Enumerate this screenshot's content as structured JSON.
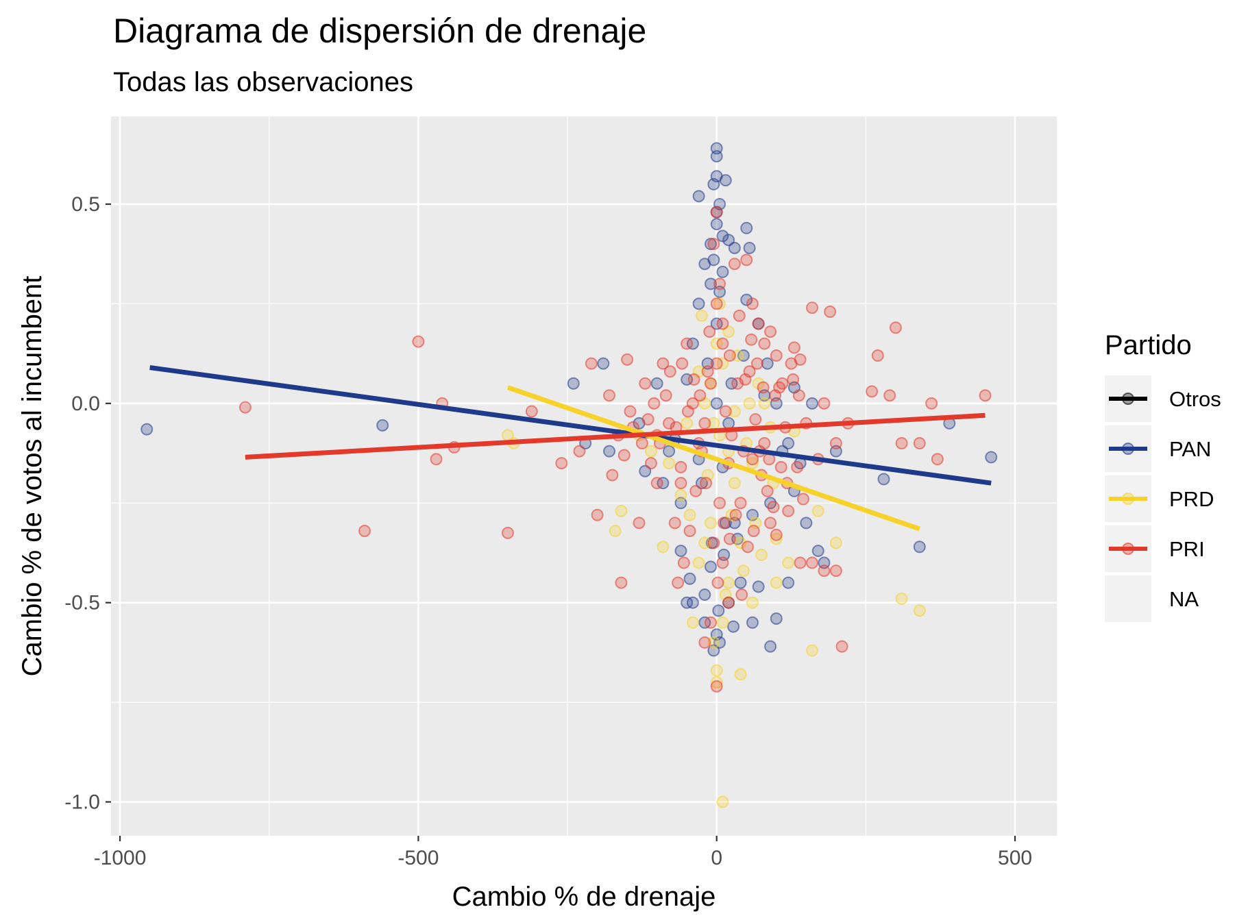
{
  "chart_data": {
    "type": "scatter",
    "title": "Diagrama de dispersión de drenaje",
    "subtitle": "Todas las observaciones",
    "xlabel": "Cambio % de drenaje",
    "ylabel": "Cambio % de votos al incumbent",
    "xlim": [
      -1015,
      570
    ],
    "ylim": [
      -1.085,
      0.72
    ],
    "x_ticks": [
      -1000,
      -500,
      0,
      500
    ],
    "x_tick_labels": [
      "-1000",
      "-500",
      "0",
      "500"
    ],
    "y_ticks": [
      -1.0,
      -0.5,
      0.0,
      0.5
    ],
    "y_tick_labels": [
      "-1.0",
      "-0.5",
      "0.0",
      "0.5"
    ],
    "grid": true,
    "legend": {
      "title": "Partido",
      "position": "right",
      "entries": [
        "Otros",
        "PAN",
        "PRD",
        "PRI",
        "NA"
      ]
    },
    "colors": {
      "Otros": "#000000",
      "PAN": "#1f3a8a",
      "PRD": "#f7d22a",
      "PRI": "#e2392b",
      "NA": "#ebebeb",
      "panel": "#ebebeb",
      "grid": "#ffffff"
    },
    "trend_lines": [
      {
        "name": "PAN",
        "x": [
          -950,
          460
        ],
        "y": [
          0.09,
          -0.2
        ]
      },
      {
        "name": "PRD",
        "x": [
          -350,
          340
        ],
        "y": [
          0.04,
          -0.315
        ]
      },
      {
        "name": "PRI",
        "x": [
          -790,
          450
        ],
        "y": [
          -0.135,
          -0.03
        ]
      }
    ],
    "series": [
      {
        "name": "PAN",
        "points": [
          [
            -955,
            -0.065
          ],
          [
            -560,
            -0.055
          ],
          [
            -240,
            0.05
          ],
          [
            -190,
            0.1
          ],
          [
            -180,
            -0.12
          ],
          [
            -220,
            -0.1
          ],
          [
            -120,
            -0.17
          ],
          [
            -80,
            -0.12
          ],
          [
            -60,
            -0.25
          ],
          [
            -40,
            -0.5
          ],
          [
            -30,
            0.52
          ],
          [
            -20,
            0.35
          ],
          [
            -10,
            0.4
          ],
          [
            0,
            0.64
          ],
          [
            0,
            0.62
          ],
          [
            0,
            0.57
          ],
          [
            -5,
            0.55
          ],
          [
            15,
            0.56
          ],
          [
            5,
            0.5
          ],
          [
            0,
            0.48
          ],
          [
            0,
            0.45
          ],
          [
            10,
            0.42
          ],
          [
            20,
            0.41
          ],
          [
            30,
            0.39
          ],
          [
            50,
            0.44
          ],
          [
            55,
            0.39
          ],
          [
            -30,
            0.25
          ],
          [
            50,
            0.26
          ],
          [
            70,
            0.2
          ],
          [
            -10,
            0.3
          ],
          [
            10,
            0.33
          ],
          [
            -60,
            -0.37
          ],
          [
            -50,
            -0.5
          ],
          [
            -20,
            -0.55
          ],
          [
            0,
            -0.58
          ],
          [
            5,
            -0.6
          ],
          [
            -5,
            -0.62
          ],
          [
            20,
            -0.5
          ],
          [
            60,
            -0.55
          ],
          [
            90,
            -0.61
          ],
          [
            100,
            -0.54
          ],
          [
            120,
            -0.45
          ],
          [
            150,
            -0.3
          ],
          [
            170,
            -0.37
          ],
          [
            180,
            -0.4
          ],
          [
            200,
            -0.12
          ],
          [
            280,
            -0.19
          ],
          [
            340,
            -0.36
          ],
          [
            390,
            -0.05
          ],
          [
            460,
            -0.135
          ],
          [
            130,
            0.04
          ],
          [
            80,
            0.02
          ],
          [
            -100,
            0.05
          ],
          [
            -50,
            0.06
          ],
          [
            30,
            -0.3
          ],
          [
            70,
            -0.46
          ],
          [
            40,
            -0.45
          ],
          [
            -10,
            -0.41
          ],
          [
            15,
            -0.3
          ],
          [
            -25,
            -0.2
          ],
          [
            100,
            0.0
          ],
          [
            120,
            -0.1
          ],
          [
            130,
            -0.22
          ],
          [
            160,
            0.0
          ],
          [
            140,
            -0.15
          ],
          [
            -70,
            -0.09
          ],
          [
            -30,
            -0.14
          ],
          [
            10,
            -0.16
          ],
          [
            60,
            -0.28
          ],
          [
            -15,
            0.1
          ],
          [
            25,
            0.05
          ],
          [
            45,
            0.12
          ],
          [
            -40,
            0.15
          ],
          [
            85,
            0.1
          ],
          [
            0,
            0.2
          ],
          [
            5,
            0.28
          ],
          [
            -5,
            0.36
          ],
          [
            0,
            0.0
          ],
          [
            20,
            -0.05
          ],
          [
            -8,
            -0.35
          ],
          [
            12,
            -0.38
          ],
          [
            35,
            -0.34
          ],
          [
            -45,
            -0.44
          ],
          [
            -20,
            -0.48
          ],
          [
            3,
            -0.52
          ],
          [
            28,
            -0.56
          ],
          [
            90,
            -0.25
          ],
          [
            110,
            -0.12
          ],
          [
            -130,
            -0.05
          ],
          [
            -90,
            -0.2
          ]
        ]
      },
      {
        "name": "PRD",
        "points": [
          [
            -350,
            -0.08
          ],
          [
            -340,
            -0.1
          ],
          [
            -160,
            -0.27
          ],
          [
            -170,
            -0.32
          ],
          [
            -90,
            -0.36
          ],
          [
            -30,
            -0.4
          ],
          [
            -40,
            -0.55
          ],
          [
            0,
            -0.67
          ],
          [
            0,
            -0.7
          ],
          [
            40,
            -0.68
          ],
          [
            10,
            -1.0
          ],
          [
            100,
            -0.45
          ],
          [
            120,
            -0.4
          ],
          [
            160,
            -0.62
          ],
          [
            200,
            -0.35
          ],
          [
            310,
            -0.49
          ],
          [
            340,
            -0.52
          ],
          [
            170,
            -0.27
          ],
          [
            100,
            -0.34
          ],
          [
            60,
            -0.5
          ],
          [
            20,
            -0.45
          ],
          [
            -10,
            -0.3
          ],
          [
            30,
            -0.2
          ],
          [
            50,
            -0.1
          ],
          [
            80,
            0.0
          ],
          [
            -20,
            0.0
          ],
          [
            0,
            0.15
          ],
          [
            20,
            0.18
          ],
          [
            -50,
            -0.05
          ],
          [
            70,
            0.05
          ],
          [
            -80,
            -0.15
          ],
          [
            -60,
            -0.23
          ],
          [
            -20,
            -0.35
          ],
          [
            40,
            -0.35
          ],
          [
            10,
            -0.55
          ],
          [
            -5,
            -0.6
          ],
          [
            25,
            -0.28
          ],
          [
            60,
            -0.15
          ],
          [
            90,
            -0.06
          ],
          [
            -110,
            -0.12
          ],
          [
            -130,
            -0.08
          ],
          [
            -30,
            0.08
          ],
          [
            10,
            0.1
          ],
          [
            30,
            -0.02
          ],
          [
            -15,
            -0.18
          ],
          [
            45,
            -0.42
          ],
          [
            75,
            -0.38
          ],
          [
            -45,
            -0.28
          ],
          [
            5,
            -0.08
          ],
          [
            15,
            -0.48
          ],
          [
            55,
            0.0
          ],
          [
            35,
            0.12
          ],
          [
            -25,
            0.22
          ],
          [
            5,
            0.25
          ],
          [
            95,
            -0.2
          ],
          [
            130,
            -0.07
          ],
          [
            -5,
            -0.05
          ],
          [
            20,
            -0.12
          ],
          [
            -10,
            0.05
          ],
          [
            65,
            -0.3
          ]
        ]
      },
      {
        "name": "PRI",
        "points": [
          [
            -790,
            -0.01
          ],
          [
            -500,
            0.155
          ],
          [
            -460,
            0.0
          ],
          [
            -470,
            -0.14
          ],
          [
            -440,
            -0.11
          ],
          [
            -590,
            -0.32
          ],
          [
            -350,
            -0.325
          ],
          [
            -310,
            -0.02
          ],
          [
            -260,
            -0.15
          ],
          [
            -230,
            -0.12
          ],
          [
            -210,
            0.1
          ],
          [
            -200,
            -0.28
          ],
          [
            -180,
            0.02
          ],
          [
            -160,
            -0.45
          ],
          [
            -150,
            0.11
          ],
          [
            -140,
            -0.06
          ],
          [
            -130,
            -0.3
          ],
          [
            -120,
            0.05
          ],
          [
            -110,
            -0.15
          ],
          [
            -100,
            -0.08
          ],
          [
            -100,
            -0.2
          ],
          [
            -90,
            0.1
          ],
          [
            -80,
            -0.05
          ],
          [
            -60,
            -0.2
          ],
          [
            -50,
            0.15
          ],
          [
            -40,
            0.0
          ],
          [
            -30,
            -0.1
          ],
          [
            -20,
            -0.05
          ],
          [
            -10,
            0.05
          ],
          [
            0,
            0.1
          ],
          [
            10,
            0.2
          ],
          [
            20,
            -0.15
          ],
          [
            30,
            0.35
          ],
          [
            50,
            0.36
          ],
          [
            60,
            0.25
          ],
          [
            70,
            0.2
          ],
          [
            80,
            0.15
          ],
          [
            90,
            0.18
          ],
          [
            100,
            0.12
          ],
          [
            110,
            0.05
          ],
          [
            130,
            0.14
          ],
          [
            140,
            0.11
          ],
          [
            150,
            -0.05
          ],
          [
            160,
            0.24
          ],
          [
            170,
            -0.14
          ],
          [
            180,
            0.0
          ],
          [
            190,
            0.23
          ],
          [
            200,
            -0.1
          ],
          [
            210,
            -0.61
          ],
          [
            220,
            -0.05
          ],
          [
            260,
            0.03
          ],
          [
            270,
            0.12
          ],
          [
            290,
            0.02
          ],
          [
            300,
            0.19
          ],
          [
            310,
            -0.1
          ],
          [
            340,
            -0.1
          ],
          [
            360,
            0.0
          ],
          [
            370,
            -0.14
          ],
          [
            450,
            0.02
          ],
          [
            160,
            -0.4
          ],
          [
            140,
            -0.4
          ],
          [
            180,
            -0.42
          ],
          [
            200,
            -0.42
          ],
          [
            120,
            -0.27
          ],
          [
            100,
            -0.33
          ],
          [
            90,
            -0.3
          ],
          [
            0,
            -0.71
          ],
          [
            -20,
            -0.6
          ],
          [
            -10,
            -0.55
          ],
          [
            20,
            -0.5
          ],
          [
            40,
            -0.25
          ],
          [
            60,
            -0.14
          ],
          [
            80,
            -0.1
          ],
          [
            -70,
            -0.3
          ],
          [
            -60,
            -0.16
          ],
          [
            0,
            0.48
          ],
          [
            -5,
            0.4
          ],
          [
            5,
            0.3
          ],
          [
            0,
            0.25
          ],
          [
            10,
            0.15
          ],
          [
            -15,
            0.08
          ],
          [
            15,
            -0.02
          ],
          [
            25,
            -0.08
          ],
          [
            35,
            0.05
          ],
          [
            45,
            -0.12
          ],
          [
            55,
            0.08
          ],
          [
            65,
            -0.04
          ],
          [
            75,
            -0.18
          ],
          [
            85,
            -0.22
          ],
          [
            95,
            -0.26
          ],
          [
            -25,
            -0.12
          ],
          [
            -35,
            -0.22
          ],
          [
            -45,
            -0.32
          ],
          [
            -55,
            -0.4
          ],
          [
            -65,
            -0.45
          ],
          [
            105,
            0.04
          ],
          [
            115,
            -0.06
          ],
          [
            125,
            0.1
          ],
          [
            135,
            -0.16
          ],
          [
            145,
            -0.24
          ],
          [
            -85,
            0.02
          ],
          [
            -95,
            -0.1
          ],
          [
            -105,
            0.0
          ],
          [
            -115,
            -0.04
          ],
          [
            -125,
            -0.1
          ],
          [
            -145,
            -0.02
          ],
          [
            -155,
            -0.13
          ],
          [
            -165,
            -0.08
          ],
          [
            -175,
            -0.18
          ],
          [
            5,
            -0.25
          ],
          [
            -5,
            -0.35
          ],
          [
            10,
            -0.4
          ],
          [
            -12,
            0.18
          ],
          [
            22,
            0.12
          ],
          [
            -28,
            0.02
          ],
          [
            38,
            0.22
          ],
          [
            48,
            0.06
          ],
          [
            58,
            0.16
          ],
          [
            68,
            0.1
          ],
          [
            78,
            0.04
          ],
          [
            88,
            -0.14
          ],
          [
            98,
            0.02
          ],
          [
            108,
            -0.16
          ],
          [
            118,
            -0.2
          ],
          [
            128,
            0.06
          ],
          [
            138,
            0.02
          ],
          [
            -18,
            -0.2
          ],
          [
            -38,
            0.06
          ],
          [
            -48,
            -0.02
          ],
          [
            -58,
            0.1
          ],
          [
            -68,
            -0.06
          ],
          [
            -78,
            0.08
          ],
          [
            2,
            -0.45
          ],
          [
            12,
            -0.3
          ],
          [
            22,
            -0.34
          ],
          [
            32,
            -0.28
          ],
          [
            42,
            -0.48
          ],
          [
            52,
            -0.36
          ],
          [
            62,
            -0.32
          ],
          [
            72,
            -0.12
          ]
        ]
      }
    ]
  }
}
